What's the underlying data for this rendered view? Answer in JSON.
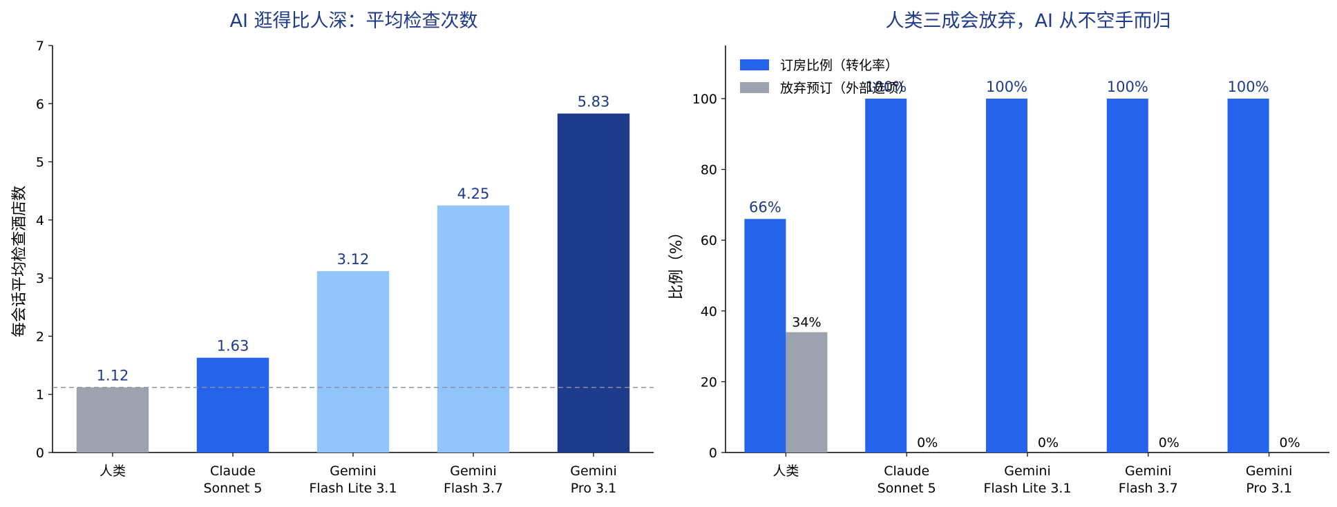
{
  "colors": {
    "title": "#1e3a8a",
    "human": "#9ca3af",
    "claude": "#2563eb",
    "gemini_light": "#93c5fd",
    "gemini_pro": "#1e3a8a",
    "booking": "#2563eb",
    "abandon": "#9ca3af",
    "bar_label_dark": "#1e3a8a",
    "bar_label_gray": "#9ca3af",
    "reference_line": "#8b93a7"
  },
  "chart_data": [
    {
      "type": "bar",
      "title": "AI 逛得比人深：平均检查次数",
      "xlabel": "",
      "ylabel": "每会话平均检查酒店数",
      "categories": [
        "人类",
        "Claude\nSonnet 5",
        "Gemini\nFlash Lite 3.1",
        "Gemini\nFlash 3.7",
        "Gemini\nPro 3.1"
      ],
      "values": [
        1.12,
        1.63,
        3.12,
        4.25,
        5.83
      ],
      "value_labels": [
        "1.12",
        "1.63",
        "3.12",
        "4.25",
        "5.83"
      ],
      "bar_colors": [
        "#9ca3af",
        "#2563eb",
        "#93c5fd",
        "#93c5fd",
        "#1e3a8a"
      ],
      "ylim": [
        0,
        7
      ],
      "yticks": [
        0,
        1,
        2,
        3,
        4,
        5,
        6,
        7
      ],
      "reference_line": 1.12,
      "grid": false
    },
    {
      "type": "bar",
      "title": "人类三成会放弃，AI 从不空手而归",
      "xlabel": "",
      "ylabel": "比例（%）",
      "categories": [
        "人类",
        "Claude\nSonnet 5",
        "Gemini\nFlash Lite 3.1",
        "Gemini\nFlash 3.7",
        "Gemini\nPro 3.1"
      ],
      "series": [
        {
          "name": "订房比例（转化率）",
          "values": [
            66,
            100,
            100,
            100,
            100
          ],
          "labels": [
            "66%",
            "100%",
            "100%",
            "100%",
            "100%"
          ],
          "color": "#2563eb"
        },
        {
          "name": "放弃预订（外部选项）",
          "values": [
            34,
            0,
            0,
            0,
            0
          ],
          "labels": [
            "34%",
            "0%",
            "0%",
            "0%",
            "0%"
          ],
          "color": "#9ca3af"
        }
      ],
      "ylim": [
        0,
        115
      ],
      "yticks": [
        0,
        20,
        40,
        60,
        80,
        100
      ],
      "legend": "top-left",
      "grid": false
    }
  ]
}
